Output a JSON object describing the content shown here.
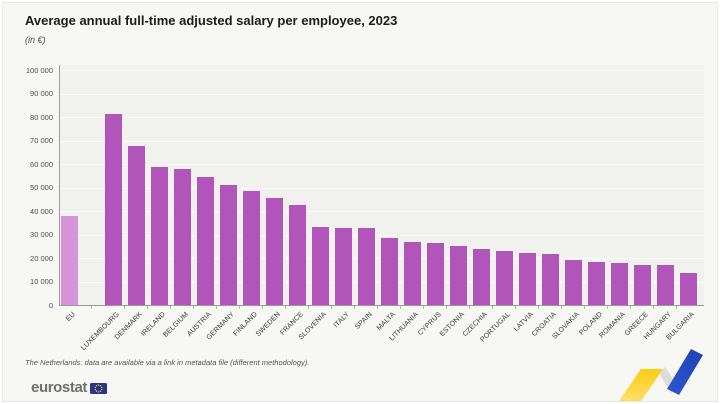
{
  "header": {
    "title": "Average annual full-time adjusted salary per employee, 2023",
    "subtitle": "(in €)"
  },
  "chart_data": {
    "type": "bar",
    "title": "Average annual full-time adjusted salary per employee, 2023",
    "unit": "€",
    "categories": [
      "EU",
      "LUXEMBOURG",
      "DENMARK",
      "IRELAND",
      "BELGIUM",
      "AUSTRIA",
      "GERMANY",
      "FINLAND",
      "SWEDEN",
      "FRANCE",
      "SLOVENIA",
      "ITALY",
      "SPAIN",
      "MALTA",
      "LITHUANIA",
      "CYPRUS",
      "ESTONIA",
      "CZECHIA",
      "PORTUGAL",
      "LATVIA",
      "CROATIA",
      "SLOVAKIA",
      "POLAND",
      "ROMANIA",
      "GREECE",
      "HUNGARY",
      "BULGARIA"
    ],
    "values": [
      37900,
      81100,
      67600,
      58700,
      58000,
      54500,
      51000,
      48400,
      45500,
      42700,
      33200,
      32700,
      32600,
      28700,
      27000,
      26500,
      25300,
      24000,
      23000,
      22300,
      21500,
      19000,
      18400,
      17700,
      17000,
      16900,
      13500
    ],
    "xlabel": "",
    "ylabel": "",
    "ylim": [
      0,
      100000
    ],
    "ytick_values": [
      0,
      10000,
      20000,
      30000,
      40000,
      50000,
      60000,
      70000,
      80000,
      90000,
      100000
    ],
    "ytick_labels": [
      "0",
      "10 000",
      "20 000",
      "30 000",
      "40 000",
      "50 000",
      "60 000",
      "70 000",
      "80 000",
      "90 000",
      "100 000"
    ],
    "grid": "horizontal",
    "legend_position": "none",
    "highlight_category": "EU",
    "colors": {
      "bar": "#b255ba",
      "eu_bar": "#d694d8",
      "plot_bg": "#f1f1ee",
      "grid_line": "#fafaf8",
      "axis": "#9a9a98"
    }
  },
  "footnote": "The Netherlands: data are available via a link in metadata file (different methodology).",
  "branding": {
    "logo_text": "eurostat",
    "flag_color": "#26368c",
    "star_color": "#fbc81b",
    "ribbon_yellow_top": "#fccc12",
    "ribbon_yellow_bottom": "#ffe27a",
    "ribbon_blue_dark": "#1f41b4",
    "ribbon_blue_light": "#2f57d0",
    "ribbon_gray": "#dcdcd9"
  }
}
